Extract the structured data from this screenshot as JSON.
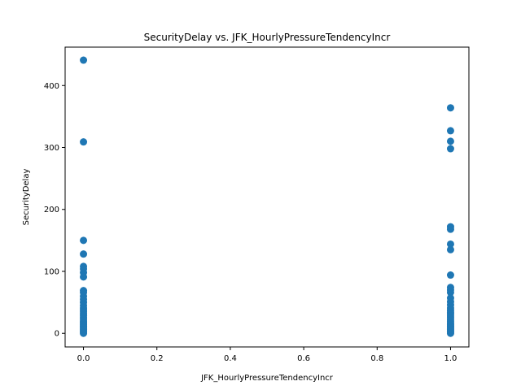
{
  "chart_data": {
    "type": "scatter",
    "title": "SecurityDelay vs. JFK_HourlyPressureTendencyIncr",
    "xlabel": "JFK_HourlyPressureTendencyIncr",
    "ylabel": "SecurityDelay",
    "xlim": [
      -0.05,
      1.05
    ],
    "ylim": [
      -22,
      462
    ],
    "xticks": [
      0.0,
      0.2,
      0.4,
      0.6,
      0.8,
      1.0
    ],
    "xtick_labels": [
      "0.0",
      "0.2",
      "0.4",
      "0.6",
      "0.8",
      "1.0"
    ],
    "yticks": [
      0,
      100,
      200,
      300,
      400
    ],
    "ytick_labels": [
      "0",
      "100",
      "200",
      "300",
      "400"
    ],
    "grid": false,
    "marker_color": "#1f77b4",
    "points": [
      [
        0,
        441
      ],
      [
        0,
        309
      ],
      [
        0,
        150
      ],
      [
        0,
        128
      ],
      [
        0,
        108
      ],
      [
        0,
        104
      ],
      [
        0,
        98
      ],
      [
        0,
        91
      ],
      [
        0,
        69
      ],
      [
        0,
        66
      ],
      [
        0,
        60
      ],
      [
        0,
        55
      ],
      [
        0,
        50
      ],
      [
        0,
        45
      ],
      [
        0,
        41
      ],
      [
        0,
        38
      ],
      [
        0,
        35
      ],
      [
        0,
        32
      ],
      [
        0,
        29
      ],
      [
        0,
        26
      ],
      [
        0,
        23
      ],
      [
        0,
        20
      ],
      [
        0,
        18
      ],
      [
        0,
        16
      ],
      [
        0,
        14
      ],
      [
        0,
        12
      ],
      [
        0,
        10
      ],
      [
        0,
        8
      ],
      [
        0,
        6
      ],
      [
        0,
        4
      ],
      [
        0,
        2
      ],
      [
        0,
        0
      ],
      [
        1,
        364
      ],
      [
        1,
        327
      ],
      [
        1,
        310
      ],
      [
        1,
        298
      ],
      [
        1,
        172
      ],
      [
        1,
        168
      ],
      [
        1,
        144
      ],
      [
        1,
        135
      ],
      [
        1,
        94
      ],
      [
        1,
        74
      ],
      [
        1,
        70
      ],
      [
        1,
        66
      ],
      [
        1,
        57
      ],
      [
        1,
        51
      ],
      [
        1,
        46
      ],
      [
        1,
        41
      ],
      [
        1,
        37
      ],
      [
        1,
        34
      ],
      [
        1,
        31
      ],
      [
        1,
        28
      ],
      [
        1,
        25
      ],
      [
        1,
        22
      ],
      [
        1,
        19
      ],
      [
        1,
        16
      ],
      [
        1,
        14
      ],
      [
        1,
        12
      ],
      [
        1,
        10
      ],
      [
        1,
        8
      ],
      [
        1,
        6
      ],
      [
        1,
        4
      ],
      [
        1,
        2
      ],
      [
        1,
        0
      ]
    ]
  }
}
